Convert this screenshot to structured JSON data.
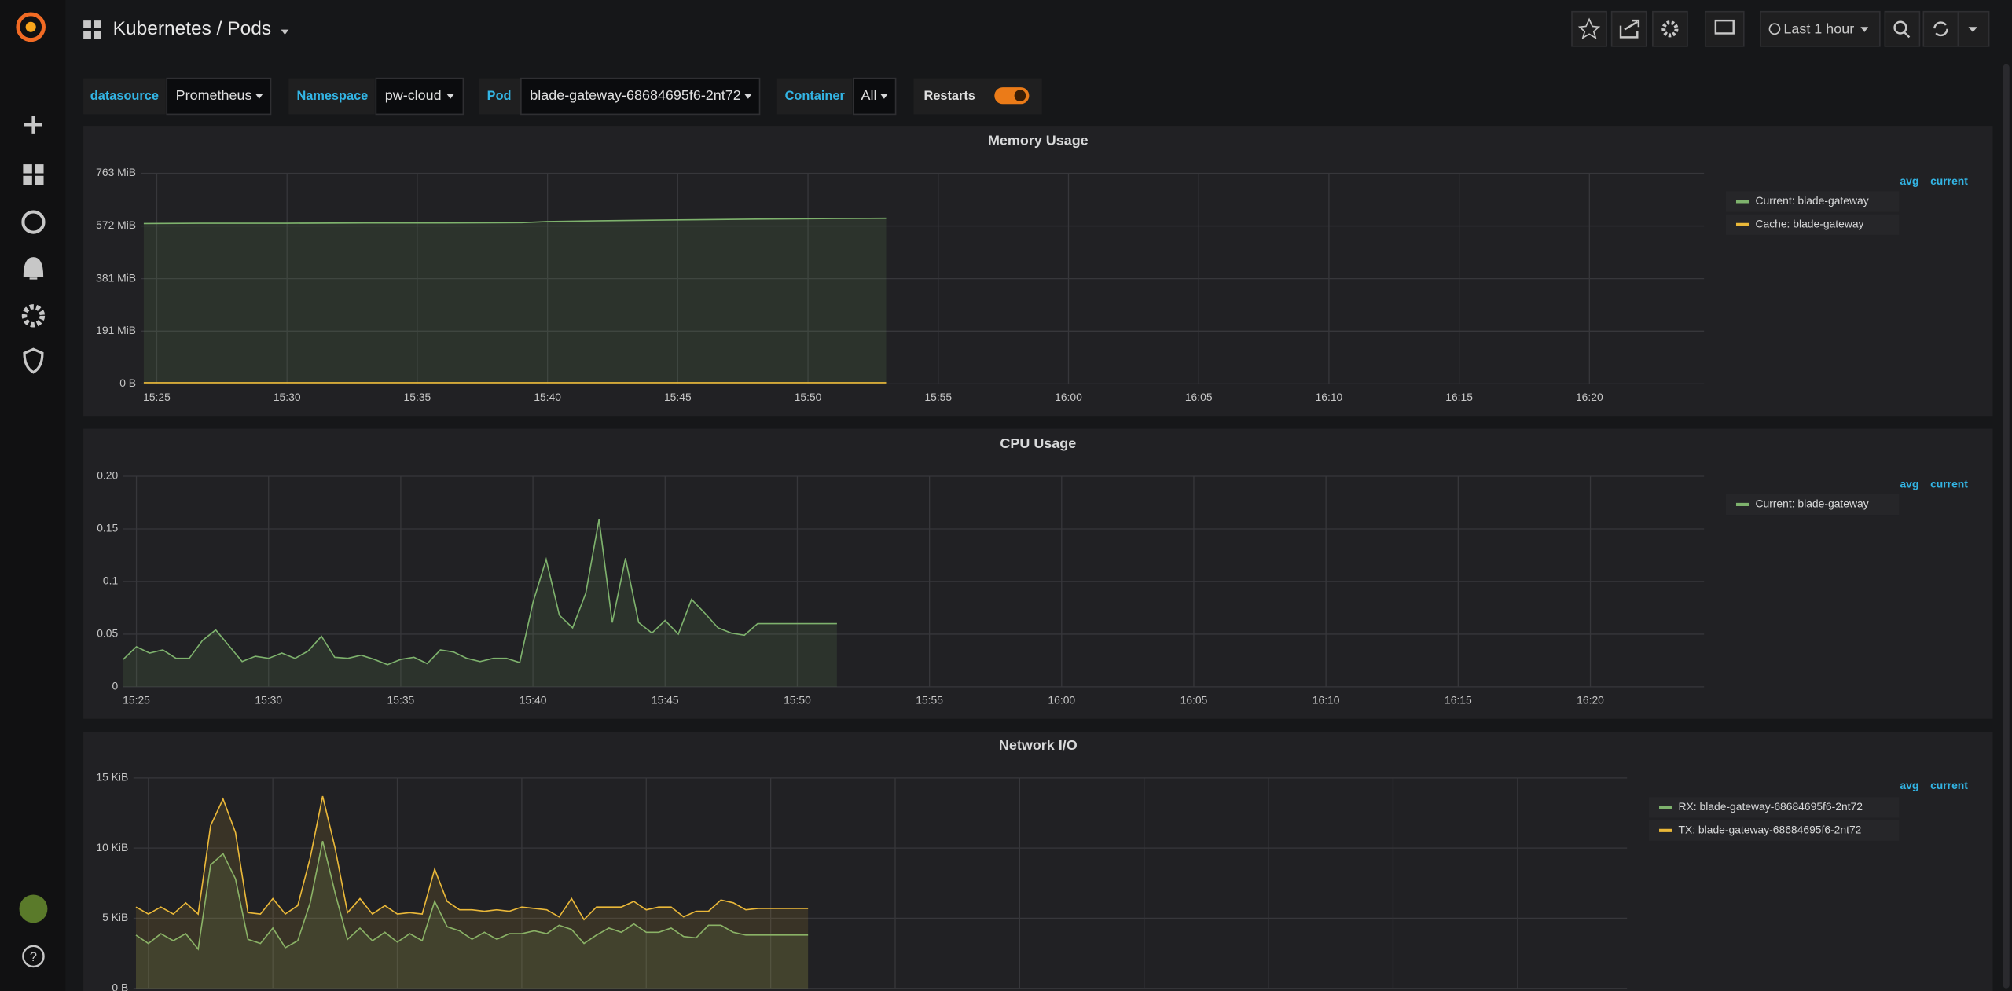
{
  "header": {
    "title": "Kubernetes / Pods",
    "time_range": "Last 1 hour"
  },
  "variables": [
    {
      "label": "datasource",
      "value": "Prometheus"
    },
    {
      "label": "Namespace",
      "value": "pw-cloud"
    },
    {
      "label": "Pod",
      "value": "blade-gateway-68684695f6-2nt72"
    },
    {
      "label": "Container",
      "value": "All"
    },
    {
      "label": "Restarts"
    }
  ],
  "chart_data": [
    {
      "type": "line",
      "title": "Memory Usage",
      "grid": true,
      "fill": true,
      "legend_columns": [
        "avg",
        "current"
      ],
      "x": [
        924.5,
        927,
        930,
        933,
        936,
        939,
        940,
        942,
        945,
        948,
        951,
        953
      ],
      "series": [
        {
          "name": "Current: blade-gateway",
          "color": "#7eb26d",
          "values": [
            581,
            582,
            582,
            583,
            583,
            584,
            588,
            591,
            594,
            597,
            599,
            600
          ]
        },
        {
          "name": "Cache: blade-gateway",
          "color": "#eab839",
          "values": [
            4,
            4,
            4,
            4,
            4,
            4,
            4,
            4,
            4,
            4,
            4,
            4
          ]
        }
      ],
      "xlim": [
        924.4,
        984.4
      ],
      "xticks": [
        {
          "value": 925,
          "label": "15:25"
        },
        {
          "value": 930,
          "label": "15:30"
        },
        {
          "value": 935,
          "label": "15:35"
        },
        {
          "value": 940,
          "label": "15:40"
        },
        {
          "value": 945,
          "label": "15:45"
        },
        {
          "value": 950,
          "label": "15:50"
        },
        {
          "value": 955,
          "label": "15:55"
        },
        {
          "value": 960,
          "label": "16:00"
        },
        {
          "value": 965,
          "label": "16:05"
        },
        {
          "value": 970,
          "label": "16:10"
        },
        {
          "value": 975,
          "label": "16:15"
        },
        {
          "value": 980,
          "label": "16:20"
        }
      ],
      "ylim": [
        0,
        763
      ],
      "yticks": [
        {
          "value": 0,
          "label": "0 B"
        },
        {
          "value": 191,
          "label": "191 MiB"
        },
        {
          "value": 381,
          "label": "381 MiB"
        },
        {
          "value": 572,
          "label": "572 MiB"
        },
        {
          "value": 763,
          "label": "763 MiB"
        }
      ]
    },
    {
      "type": "line",
      "title": "CPU Usage",
      "grid": true,
      "fill": true,
      "legend_columns": [
        "avg",
        "current"
      ],
      "x": [
        924.5,
        925,
        925.5,
        926,
        926.5,
        927,
        927.5,
        928,
        928.5,
        929,
        929.5,
        930,
        930.5,
        931,
        931.5,
        932,
        932.5,
        933,
        933.5,
        934,
        934.5,
        935,
        935.5,
        936,
        936.5,
        937,
        937.5,
        938,
        938.5,
        939,
        939.5,
        940,
        940.5,
        941,
        941.5,
        942,
        942.5,
        943,
        943.5,
        944,
        944.5,
        945,
        945.5,
        946,
        946.5,
        947,
        947.5,
        948,
        948.5,
        949,
        949.5,
        950,
        950.5,
        951,
        951.5
      ],
      "series": [
        {
          "name": "Current: blade-gateway",
          "color": "#7eb26d",
          "values": [
            0.026,
            0.038,
            0.032,
            0.035,
            0.027,
            0.027,
            0.044,
            0.054,
            0.039,
            0.024,
            0.029,
            0.027,
            0.032,
            0.027,
            0.034,
            0.048,
            0.028,
            0.027,
            0.03,
            0.026,
            0.021,
            0.026,
            0.028,
            0.022,
            0.035,
            0.033,
            0.027,
            0.024,
            0.027,
            0.027,
            0.023,
            0.08,
            0.121,
            0.068,
            0.056,
            0.089,
            0.159,
            0.061,
            0.122,
            0.061,
            0.051,
            0.063,
            0.05,
            0.083,
            0.07,
            0.056,
            0.051,
            0.049,
            0.06,
            0.06,
            0.06,
            0.06,
            0.06,
            0.06,
            0.06
          ]
        }
      ],
      "xlim": [
        924.5,
        984.3
      ],
      "xticks": [
        {
          "value": 925,
          "label": "15:25"
        },
        {
          "value": 930,
          "label": "15:30"
        },
        {
          "value": 935,
          "label": "15:35"
        },
        {
          "value": 940,
          "label": "15:40"
        },
        {
          "value": 945,
          "label": "15:45"
        },
        {
          "value": 950,
          "label": "15:50"
        },
        {
          "value": 955,
          "label": "15:55"
        },
        {
          "value": 960,
          "label": "16:00"
        },
        {
          "value": 965,
          "label": "16:05"
        },
        {
          "value": 970,
          "label": "16:10"
        },
        {
          "value": 975,
          "label": "16:15"
        },
        {
          "value": 980,
          "label": "16:20"
        }
      ],
      "ylim": [
        0,
        0.2
      ],
      "yticks": [
        0,
        0.05,
        0.1,
        0.15,
        {
          "value": 0.2,
          "label": "0.20"
        }
      ]
    },
    {
      "type": "line",
      "title": "Network I/O",
      "grid": true,
      "fill": true,
      "legend_columns": [
        "avg",
        "current"
      ],
      "x": [
        924.5,
        925,
        925.5,
        926,
        926.5,
        927,
        927.5,
        928,
        928.5,
        929,
        929.5,
        930,
        930.5,
        931,
        931.5,
        932,
        932.5,
        933,
        933.5,
        934,
        934.5,
        935,
        935.5,
        936,
        936.5,
        937,
        937.5,
        938,
        938.5,
        939,
        939.5,
        940,
        940.5,
        941,
        941.5,
        942,
        942.5,
        943,
        943.5,
        944,
        944.5,
        945,
        945.5,
        946,
        946.5,
        947,
        947.5,
        948,
        948.5,
        949,
        949.5,
        950,
        951.5
      ],
      "series": [
        {
          "name": "RX: blade-gateway-68684695f6-2nt72",
          "color": "#7eb26d",
          "values": [
            3.8,
            3.2,
            3.9,
            3.4,
            3.9,
            2.8,
            8.8,
            9.6,
            7.8,
            3.5,
            3.2,
            4.3,
            2.9,
            3.4,
            6.1,
            10.5,
            6.8,
            3.5,
            4.3,
            3.4,
            4.0,
            3.3,
            3.9,
            3.4,
            6.2,
            4.4,
            4.1,
            3.5,
            4.0,
            3.5,
            3.9,
            3.9,
            4.1,
            3.9,
            4.5,
            4.2,
            3.2,
            3.8,
            4.3,
            4.0,
            4.6,
            4.0,
            4.0,
            4.3,
            3.7,
            3.6,
            4.5,
            4.5,
            4.0,
            3.8,
            3.8,
            3.8,
            3.8
          ]
        },
        {
          "name": "TX: blade-gateway-68684695f6-2nt72",
          "color": "#eab839",
          "values": [
            5.8,
            5.3,
            5.8,
            5.3,
            6.1,
            5.3,
            11.6,
            13.5,
            11.1,
            5.4,
            5.3,
            6.4,
            5.3,
            5.9,
            9.3,
            13.7,
            10.0,
            5.4,
            6.4,
            5.3,
            5.9,
            5.3,
            5.4,
            5.3,
            8.5,
            6.2,
            5.6,
            5.6,
            5.5,
            5.6,
            5.5,
            5.8,
            5.7,
            5.6,
            5.1,
            6.4,
            4.9,
            5.8,
            5.8,
            5.8,
            6.2,
            5.6,
            5.8,
            5.8,
            5.1,
            5.5,
            5.5,
            6.3,
            6.1,
            5.6,
            5.7,
            5.7,
            5.7
          ]
        }
      ],
      "xlim": [
        924.4,
        984.4
      ],
      "xticks": [
        925,
        930,
        935,
        940,
        945,
        950,
        955,
        960,
        965,
        970,
        975,
        980
      ],
      "ylim": [
        0,
        15
      ],
      "yticks": [
        {
          "value": 0,
          "label": "0 B"
        },
        {
          "value": 5,
          "label": "5 KiB"
        },
        {
          "value": 10,
          "label": "10 KiB"
        },
        {
          "value": 15,
          "label": "15 KiB"
        }
      ]
    }
  ]
}
